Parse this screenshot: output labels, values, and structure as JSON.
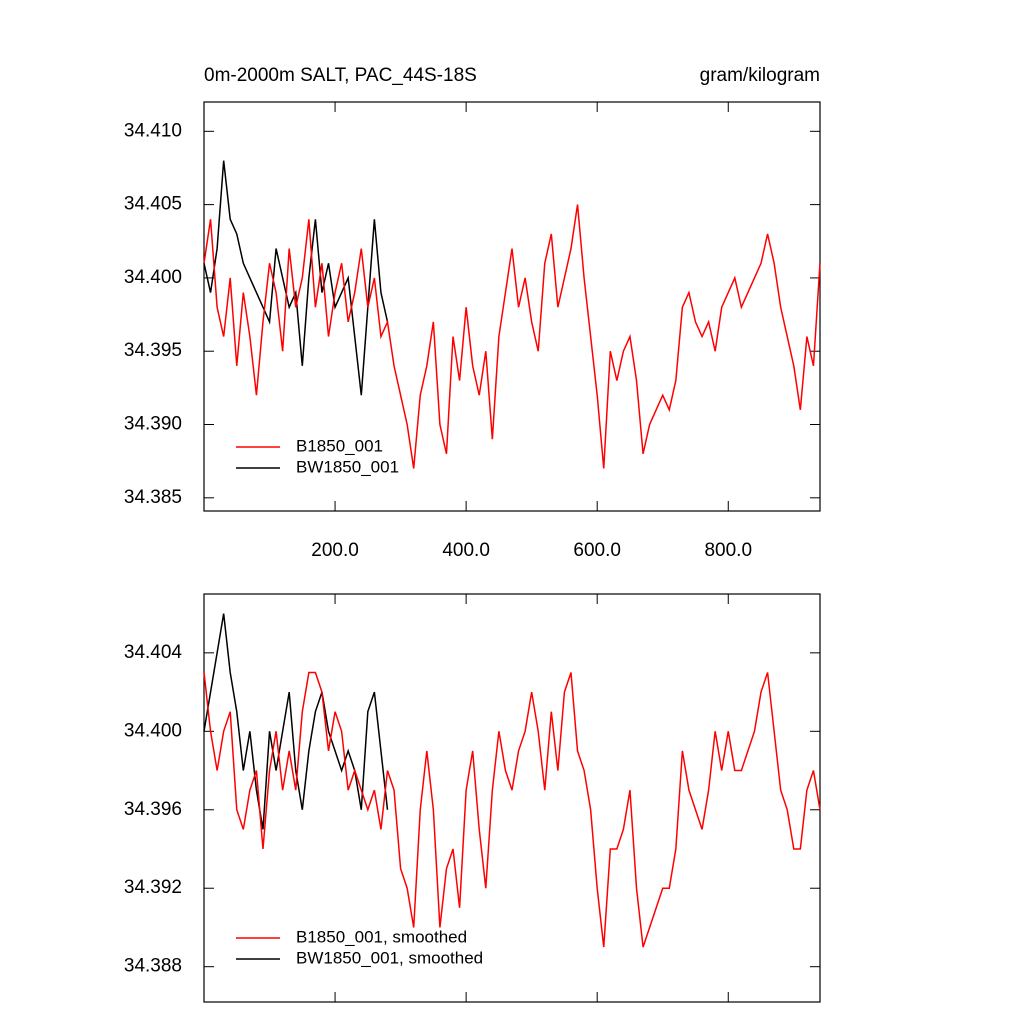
{
  "chart_data": [
    {
      "type": "line",
      "title": "0m-2000m SALT, PAC_44S-18S",
      "units": "gram/kilogram",
      "xlim": [
        0,
        940
      ],
      "ylim": [
        34.3841,
        34.412
      ],
      "xticks": [
        {
          "value": 200,
          "label": "200.0"
        },
        {
          "value": 400,
          "label": "400.0"
        },
        {
          "value": 600,
          "label": "600.0"
        },
        {
          "value": 800,
          "label": "800.0"
        }
      ],
      "yticks": [
        {
          "value": 34.385,
          "label": "34.385"
        },
        {
          "value": 34.39,
          "label": "34.390"
        },
        {
          "value": 34.395,
          "label": "34.395"
        },
        {
          "value": 34.4,
          "label": "34.400"
        },
        {
          "value": 34.405,
          "label": "34.405"
        },
        {
          "value": 34.41,
          "label": "34.410"
        }
      ],
      "legend": "lower left",
      "series": [
        {
          "name": "BW1850_001",
          "color": "#000000",
          "x": [
            0,
            10,
            20,
            30,
            40,
            50,
            60,
            70,
            80,
            90,
            100,
            110,
            120,
            130,
            140,
            150,
            160,
            170,
            180,
            190,
            200,
            210,
            220,
            230,
            240,
            250,
            260,
            270,
            280
          ],
          "values": [
            34.401,
            34.399,
            34.402,
            34.408,
            34.404,
            34.403,
            34.401,
            34.4,
            34.399,
            34.398,
            34.397,
            34.402,
            34.4,
            34.398,
            34.399,
            34.394,
            34.4,
            34.404,
            34.399,
            34.401,
            34.398,
            34.399,
            34.4,
            34.396,
            34.392,
            34.398,
            34.404,
            34.399,
            34.397
          ]
        },
        {
          "name": "B1850_001",
          "color": "#ff0000",
          "x": [
            0,
            10,
            20,
            30,
            40,
            50,
            60,
            70,
            80,
            90,
            100,
            110,
            120,
            130,
            140,
            150,
            160,
            170,
            180,
            190,
            200,
            210,
            220,
            230,
            240,
            250,
            260,
            270,
            280,
            290,
            300,
            310,
            320,
            330,
            340,
            350,
            360,
            370,
            380,
            390,
            400,
            410,
            420,
            430,
            440,
            450,
            460,
            470,
            480,
            490,
            500,
            510,
            520,
            530,
            540,
            550,
            560,
            570,
            580,
            590,
            600,
            610,
            620,
            630,
            640,
            650,
            660,
            670,
            680,
            690,
            700,
            710,
            720,
            730,
            740,
            750,
            760,
            770,
            780,
            790,
            800,
            810,
            820,
            830,
            840,
            850,
            860,
            870,
            880,
            890,
            900,
            910,
            920,
            930,
            940
          ],
          "values": [
            34.401,
            34.404,
            34.398,
            34.396,
            34.4,
            34.394,
            34.399,
            34.396,
            34.392,
            34.397,
            34.401,
            34.399,
            34.395,
            34.402,
            34.398,
            34.4,
            34.404,
            34.398,
            34.401,
            34.396,
            34.399,
            34.401,
            34.397,
            34.399,
            34.402,
            34.398,
            34.4,
            34.396,
            34.397,
            34.394,
            34.392,
            34.39,
            34.387,
            34.392,
            34.394,
            34.397,
            34.39,
            34.388,
            34.396,
            34.393,
            34.398,
            34.394,
            34.392,
            34.395,
            34.389,
            34.396,
            34.399,
            34.402,
            34.398,
            34.4,
            34.397,
            34.395,
            34.401,
            34.403,
            34.398,
            34.4,
            34.402,
            34.405,
            34.4,
            34.396,
            34.392,
            34.387,
            34.395,
            34.393,
            34.395,
            34.396,
            34.393,
            34.388,
            34.39,
            34.391,
            34.392,
            34.391,
            34.393,
            34.398,
            34.399,
            34.397,
            34.396,
            34.397,
            34.395,
            34.398,
            34.399,
            34.4,
            34.398,
            34.399,
            34.4,
            34.401,
            34.403,
            34.401,
            34.398,
            34.396,
            34.394,
            34.391,
            34.396,
            34.394,
            34.401
          ]
        }
      ]
    },
    {
      "type": "line",
      "xlim": [
        0,
        940
      ],
      "ylim": [
        34.3862,
        34.407
      ],
      "xticks": [
        200,
        400,
        600,
        800
      ],
      "yticks": [
        {
          "value": 34.388,
          "label": "34.388"
        },
        {
          "value": 34.392,
          "label": "34.392"
        },
        {
          "value": 34.396,
          "label": "34.396"
        },
        {
          "value": 34.4,
          "label": "34.400"
        },
        {
          "value": 34.404,
          "label": "34.404"
        }
      ],
      "legend": "lower left",
      "series": [
        {
          "name": "BW1850_001, smoothed",
          "color": "#000000",
          "x": [
            0,
            10,
            20,
            30,
            40,
            50,
            60,
            70,
            80,
            90,
            100,
            110,
            120,
            130,
            140,
            150,
            160,
            170,
            180,
            190,
            200,
            210,
            220,
            230,
            240,
            250,
            260,
            270,
            280
          ],
          "values": [
            34.4,
            34.402,
            34.404,
            34.406,
            34.403,
            34.401,
            34.398,
            34.4,
            34.397,
            34.395,
            34.4,
            34.398,
            34.4,
            34.402,
            34.398,
            34.396,
            34.399,
            34.401,
            34.402,
            34.4,
            34.399,
            34.398,
            34.399,
            34.398,
            34.396,
            34.401,
            34.402,
            34.399,
            34.396
          ]
        },
        {
          "name": "B1850_001, smoothed",
          "color": "#ff0000",
          "x": [
            0,
            10,
            20,
            30,
            40,
            50,
            60,
            70,
            80,
            90,
            100,
            110,
            120,
            130,
            140,
            150,
            160,
            170,
            180,
            190,
            200,
            210,
            220,
            230,
            240,
            250,
            260,
            270,
            280,
            290,
            300,
            310,
            320,
            330,
            340,
            350,
            360,
            370,
            380,
            390,
            400,
            410,
            420,
            430,
            440,
            450,
            460,
            470,
            480,
            490,
            500,
            510,
            520,
            530,
            540,
            550,
            560,
            570,
            580,
            590,
            600,
            610,
            620,
            630,
            640,
            650,
            660,
            670,
            680,
            690,
            700,
            710,
            720,
            730,
            740,
            750,
            760,
            770,
            780,
            790,
            800,
            810,
            820,
            830,
            840,
            850,
            860,
            870,
            880,
            890,
            900,
            910,
            920,
            930,
            940
          ],
          "values": [
            34.403,
            34.4,
            34.398,
            34.4,
            34.401,
            34.396,
            34.395,
            34.397,
            34.398,
            34.394,
            34.398,
            34.4,
            34.397,
            34.399,
            34.397,
            34.401,
            34.403,
            34.403,
            34.402,
            34.399,
            34.401,
            34.4,
            34.397,
            34.398,
            34.397,
            34.396,
            34.397,
            34.395,
            34.398,
            34.397,
            34.393,
            34.392,
            34.39,
            34.396,
            34.399,
            34.396,
            34.39,
            34.393,
            34.394,
            34.391,
            34.397,
            34.399,
            34.395,
            34.392,
            34.397,
            34.4,
            34.398,
            34.397,
            34.399,
            34.4,
            34.402,
            34.4,
            34.397,
            34.401,
            34.398,
            34.402,
            34.403,
            34.399,
            34.398,
            34.396,
            34.392,
            34.389,
            34.394,
            34.394,
            34.395,
            34.397,
            34.392,
            34.389,
            34.39,
            34.391,
            34.392,
            34.392,
            34.394,
            34.399,
            34.397,
            34.396,
            34.395,
            34.397,
            34.4,
            34.398,
            34.4,
            34.398,
            34.398,
            34.399,
            34.4,
            34.402,
            34.403,
            34.4,
            34.397,
            34.396,
            34.394,
            34.394,
            34.397,
            34.398,
            34.396
          ]
        }
      ]
    }
  ]
}
